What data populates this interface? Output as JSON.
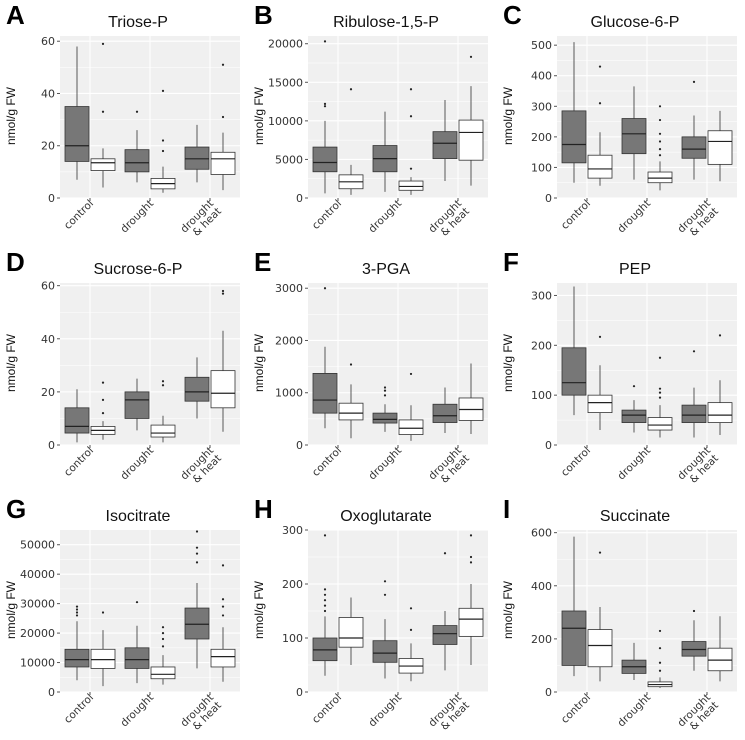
{
  "figure": {
    "y_axis_label": "nmol/g FW"
  },
  "categories": [
    "control",
    "drought",
    [
      "drought",
      "& heat"
    ]
  ],
  "colors": {
    "gray_fill": "#777777",
    "white_fill": "#ffffff",
    "panel_bg": "#f0f0f0",
    "grid": "#ffffff",
    "outline": "#333333"
  },
  "chart_data": [
    {
      "label": "A",
      "title": "Triose-P",
      "type": "boxplot",
      "ylim": [
        0,
        62
      ],
      "yticks": [
        0,
        20,
        40,
        60
      ],
      "tick_labels": [
        "0",
        "20",
        "40",
        "60"
      ],
      "groups": [
        {
          "gray": {
            "min": 7,
            "q1": 14,
            "med": 20,
            "q3": 35,
            "max": 58,
            "outliers": []
          },
          "white": {
            "min": 4,
            "q1": 10.5,
            "med": 13.5,
            "q3": 15,
            "max": 19,
            "outliers": [
              33,
              59
            ]
          }
        },
        {
          "gray": {
            "min": 6,
            "q1": 10,
            "med": 13.5,
            "q3": 18.5,
            "max": 26,
            "outliers": [
              33
            ]
          },
          "white": {
            "min": 2,
            "q1": 3.5,
            "med": 5.5,
            "q3": 7.5,
            "max": 12,
            "outliers": [
              18,
              22,
              41
            ]
          }
        },
        {
          "gray": {
            "min": 6,
            "q1": 11,
            "med": 15,
            "q3": 19.5,
            "max": 28,
            "outliers": []
          },
          "white": {
            "min": 3,
            "q1": 9,
            "med": 15,
            "q3": 17.5,
            "max": 25,
            "outliers": [
              31,
              51
            ]
          }
        }
      ]
    },
    {
      "label": "B",
      "title": "Ribulose-1,5-P",
      "type": "boxplot",
      "ylim": [
        0,
        21000
      ],
      "yticks": [
        0,
        5000,
        10000,
        15000,
        20000
      ],
      "tick_labels": [
        "0",
        "5000",
        "10000",
        "15000",
        "20000"
      ],
      "groups": [
        {
          "gray": {
            "min": 600,
            "q1": 3400,
            "med": 4600,
            "q3": 6600,
            "max": 10000,
            "outliers": [
              11900,
              12200,
              20300
            ]
          },
          "white": {
            "min": 400,
            "q1": 1200,
            "med": 2100,
            "q3": 3000,
            "max": 4300,
            "outliers": [
              14100
            ]
          }
        },
        {
          "gray": {
            "min": 800,
            "q1": 3400,
            "med": 5100,
            "q3": 6800,
            "max": 11200,
            "outliers": []
          },
          "white": {
            "min": 400,
            "q1": 1000,
            "med": 1500,
            "q3": 2200,
            "max": 2700,
            "outliers": [
              3800,
              10600,
              14100
            ]
          }
        },
        {
          "gray": {
            "min": 2200,
            "q1": 5100,
            "med": 7100,
            "q3": 8600,
            "max": 12700,
            "outliers": []
          },
          "white": {
            "min": 1600,
            "q1": 4900,
            "med": 8500,
            "q3": 10100,
            "max": 14500,
            "outliers": [
              18300
            ]
          }
        }
      ]
    },
    {
      "label": "C",
      "title": "Glucose-6-P",
      "type": "boxplot",
      "ylim": [
        0,
        530
      ],
      "yticks": [
        0,
        100,
        200,
        300,
        400,
        500
      ],
      "tick_labels": [
        "0",
        "100",
        "200",
        "300",
        "400",
        "500"
      ],
      "groups": [
        {
          "gray": {
            "min": 50,
            "q1": 115,
            "med": 175,
            "q3": 285,
            "max": 510,
            "outliers": []
          },
          "white": {
            "min": 40,
            "q1": 65,
            "med": 95,
            "q3": 140,
            "max": 215,
            "outliers": [
              310,
              430
            ]
          }
        },
        {
          "gray": {
            "min": 60,
            "q1": 145,
            "med": 210,
            "q3": 260,
            "max": 365,
            "outliers": []
          },
          "white": {
            "min": 25,
            "q1": 50,
            "med": 65,
            "q3": 85,
            "max": 120,
            "outliers": [
              140,
              160,
              185,
              210,
              255,
              300
            ]
          }
        },
        {
          "gray": {
            "min": 60,
            "q1": 130,
            "med": 160,
            "q3": 200,
            "max": 270,
            "outliers": [
              380
            ]
          },
          "white": {
            "min": 55,
            "q1": 110,
            "med": 185,
            "q3": 220,
            "max": 285,
            "outliers": []
          }
        }
      ]
    },
    {
      "label": "D",
      "title": "Sucrose-6-P",
      "type": "boxplot",
      "ylim": [
        0,
        61
      ],
      "yticks": [
        0,
        20,
        40,
        60
      ],
      "tick_labels": [
        "0",
        "20",
        "40",
        "60"
      ],
      "groups": [
        {
          "gray": {
            "min": 1,
            "q1": 4.5,
            "med": 7,
            "q3": 14,
            "max": 21,
            "outliers": []
          },
          "white": {
            "min": 2,
            "q1": 4,
            "med": 5.5,
            "q3": 7,
            "max": 9,
            "outliers": [
              12,
              17,
              23.5
            ]
          }
        },
        {
          "gray": {
            "min": 5.5,
            "q1": 10,
            "med": 17,
            "q3": 20,
            "max": 25,
            "outliers": []
          },
          "white": {
            "min": 1,
            "q1": 3,
            "med": 4.5,
            "q3": 7.5,
            "max": 11,
            "outliers": [
              22.5,
              24
            ]
          }
        },
        {
          "gray": {
            "min": 10,
            "q1": 16.5,
            "med": 20,
            "q3": 25.5,
            "max": 33,
            "outliers": []
          },
          "white": {
            "min": 5,
            "q1": 14,
            "med": 19.5,
            "q3": 28,
            "max": 43,
            "outliers": [
              57,
              58
            ]
          }
        }
      ]
    },
    {
      "label": "E",
      "title": "3-PGA",
      "type": "boxplot",
      "ylim": [
        0,
        3100
      ],
      "yticks": [
        0,
        1000,
        2000,
        3000
      ],
      "tick_labels": [
        "0",
        "1000",
        "2000",
        "3000"
      ],
      "groups": [
        {
          "gray": {
            "min": 320,
            "q1": 610,
            "med": 860,
            "q3": 1370,
            "max": 1880,
            "outliers": [
              3000
            ]
          },
          "white": {
            "min": 130,
            "q1": 480,
            "med": 610,
            "q3": 800,
            "max": 1160,
            "outliers": [
              1540
            ]
          }
        },
        {
          "gray": {
            "min": 250,
            "q1": 420,
            "med": 490,
            "q3": 610,
            "max": 780,
            "outliers": [
              950,
              1040,
              1100
            ]
          },
          "white": {
            "min": 80,
            "q1": 200,
            "med": 320,
            "q3": 480,
            "max": 760,
            "outliers": [
              1360
            ]
          }
        },
        {
          "gray": {
            "min": 230,
            "q1": 430,
            "med": 560,
            "q3": 780,
            "max": 1100,
            "outliers": []
          },
          "white": {
            "min": 210,
            "q1": 470,
            "med": 680,
            "q3": 900,
            "max": 1560,
            "outliers": []
          }
        }
      ]
    },
    {
      "label": "F",
      "title": "PEP",
      "type": "boxplot",
      "ylim": [
        0,
        325
      ],
      "yticks": [
        0,
        100,
        200,
        300
      ],
      "tick_labels": [
        "0",
        "100",
        "200",
        "300"
      ],
      "groups": [
        {
          "gray": {
            "min": 60,
            "q1": 100,
            "med": 125,
            "q3": 195,
            "max": 318,
            "outliers": []
          },
          "white": {
            "min": 30,
            "q1": 65,
            "med": 85,
            "q3": 100,
            "max": 160,
            "outliers": [
              217
            ]
          }
        },
        {
          "gray": {
            "min": 25,
            "q1": 45,
            "med": 60,
            "q3": 70,
            "max": 90,
            "outliers": [
              118
            ]
          },
          "white": {
            "min": 15,
            "q1": 30,
            "med": 40,
            "q3": 55,
            "max": 80,
            "outliers": [
              95,
              105,
              113,
              175
            ]
          }
        },
        {
          "gray": {
            "min": 15,
            "q1": 45,
            "med": 60,
            "q3": 80,
            "max": 115,
            "outliers": [
              188
            ]
          },
          "white": {
            "min": 20,
            "q1": 45,
            "med": 60,
            "q3": 85,
            "max": 130,
            "outliers": [
              220
            ]
          }
        }
      ]
    },
    {
      "label": "G",
      "title": "Isocitrate",
      "type": "boxplot",
      "ylim": [
        0,
        55000
      ],
      "yticks": [
        0,
        10000,
        20000,
        30000,
        40000,
        50000
      ],
      "tick_labels": [
        "0",
        "10000",
        "20000",
        "30000",
        "40000",
        "50000"
      ],
      "groups": [
        {
          "gray": {
            "min": 4000,
            "q1": 8500,
            "med": 11000,
            "q3": 14500,
            "max": 24000,
            "outliers": [
              26000,
              27000,
              28000,
              29000
            ]
          },
          "white": {
            "min": 2000,
            "q1": 8000,
            "med": 11000,
            "q3": 14500,
            "max": 21000,
            "outliers": [
              27000
            ]
          }
        },
        {
          "gray": {
            "min": 3000,
            "q1": 8000,
            "med": 11000,
            "q3": 15000,
            "max": 22500,
            "outliers": [
              30500
            ]
          },
          "white": {
            "min": 2500,
            "q1": 4500,
            "med": 6000,
            "q3": 8500,
            "max": 12500,
            "outliers": [
              15500,
              18000,
              20000,
              22000
            ]
          }
        },
        {
          "gray": {
            "min": 8000,
            "q1": 18000,
            "med": 23000,
            "q3": 28500,
            "max": 37000,
            "outliers": [
              44000,
              47000,
              49000,
              54500
            ]
          },
          "white": {
            "min": 3500,
            "q1": 8500,
            "med": 12000,
            "q3": 14500,
            "max": 22000,
            "outliers": [
              26000,
              29000,
              31500,
              43000
            ]
          }
        }
      ]
    },
    {
      "label": "H",
      "title": "Oxoglutarate",
      "type": "boxplot",
      "ylim": [
        0,
        300
      ],
      "yticks": [
        0,
        100,
        200,
        300
      ],
      "tick_labels": [
        "0",
        "100",
        "200",
        "300"
      ],
      "groups": [
        {
          "gray": {
            "min": 30,
            "q1": 58,
            "med": 78,
            "q3": 100,
            "max": 140,
            "outliers": [
              150,
              160,
              170,
              180,
              190,
              290
            ]
          },
          "white": {
            "min": 50,
            "q1": 83,
            "med": 100,
            "q3": 138,
            "max": 175,
            "outliers": []
          }
        },
        {
          "gray": {
            "min": 25,
            "q1": 55,
            "med": 72,
            "q3": 95,
            "max": 135,
            "outliers": [
              180,
              205
            ]
          },
          "white": {
            "min": 20,
            "q1": 35,
            "med": 48,
            "q3": 62,
            "max": 90,
            "outliers": [
              115,
              155
            ]
          }
        },
        {
          "gray": {
            "min": 40,
            "q1": 88,
            "med": 108,
            "q3": 123,
            "max": 150,
            "outliers": [
              257
            ]
          },
          "white": {
            "min": 50,
            "q1": 103,
            "med": 135,
            "q3": 155,
            "max": 200,
            "outliers": [
              240,
              250,
              290
            ]
          }
        }
      ]
    },
    {
      "label": "I",
      "title": "Succinate",
      "type": "boxplot",
      "ylim": [
        0,
        610
      ],
      "yticks": [
        0,
        200,
        400,
        600
      ],
      "tick_labels": [
        "0",
        "200",
        "400",
        "600"
      ],
      "groups": [
        {
          "gray": {
            "min": 60,
            "q1": 100,
            "med": 240,
            "q3": 305,
            "max": 585,
            "outliers": []
          },
          "white": {
            "min": 40,
            "q1": 95,
            "med": 175,
            "q3": 235,
            "max": 320,
            "outliers": [
              525
            ]
          }
        },
        {
          "gray": {
            "min": 45,
            "q1": 70,
            "med": 95,
            "q3": 120,
            "max": 185,
            "outliers": []
          },
          "white": {
            "min": 15,
            "q1": 20,
            "med": 28,
            "q3": 38,
            "max": 55,
            "outliers": [
              80,
              110,
              165,
              230
            ]
          }
        },
        {
          "gray": {
            "min": 80,
            "q1": 135,
            "med": 160,
            "q3": 190,
            "max": 270,
            "outliers": [
              305
            ]
          },
          "white": {
            "min": 40,
            "q1": 80,
            "med": 120,
            "q3": 165,
            "max": 285,
            "outliers": []
          }
        }
      ]
    }
  ]
}
